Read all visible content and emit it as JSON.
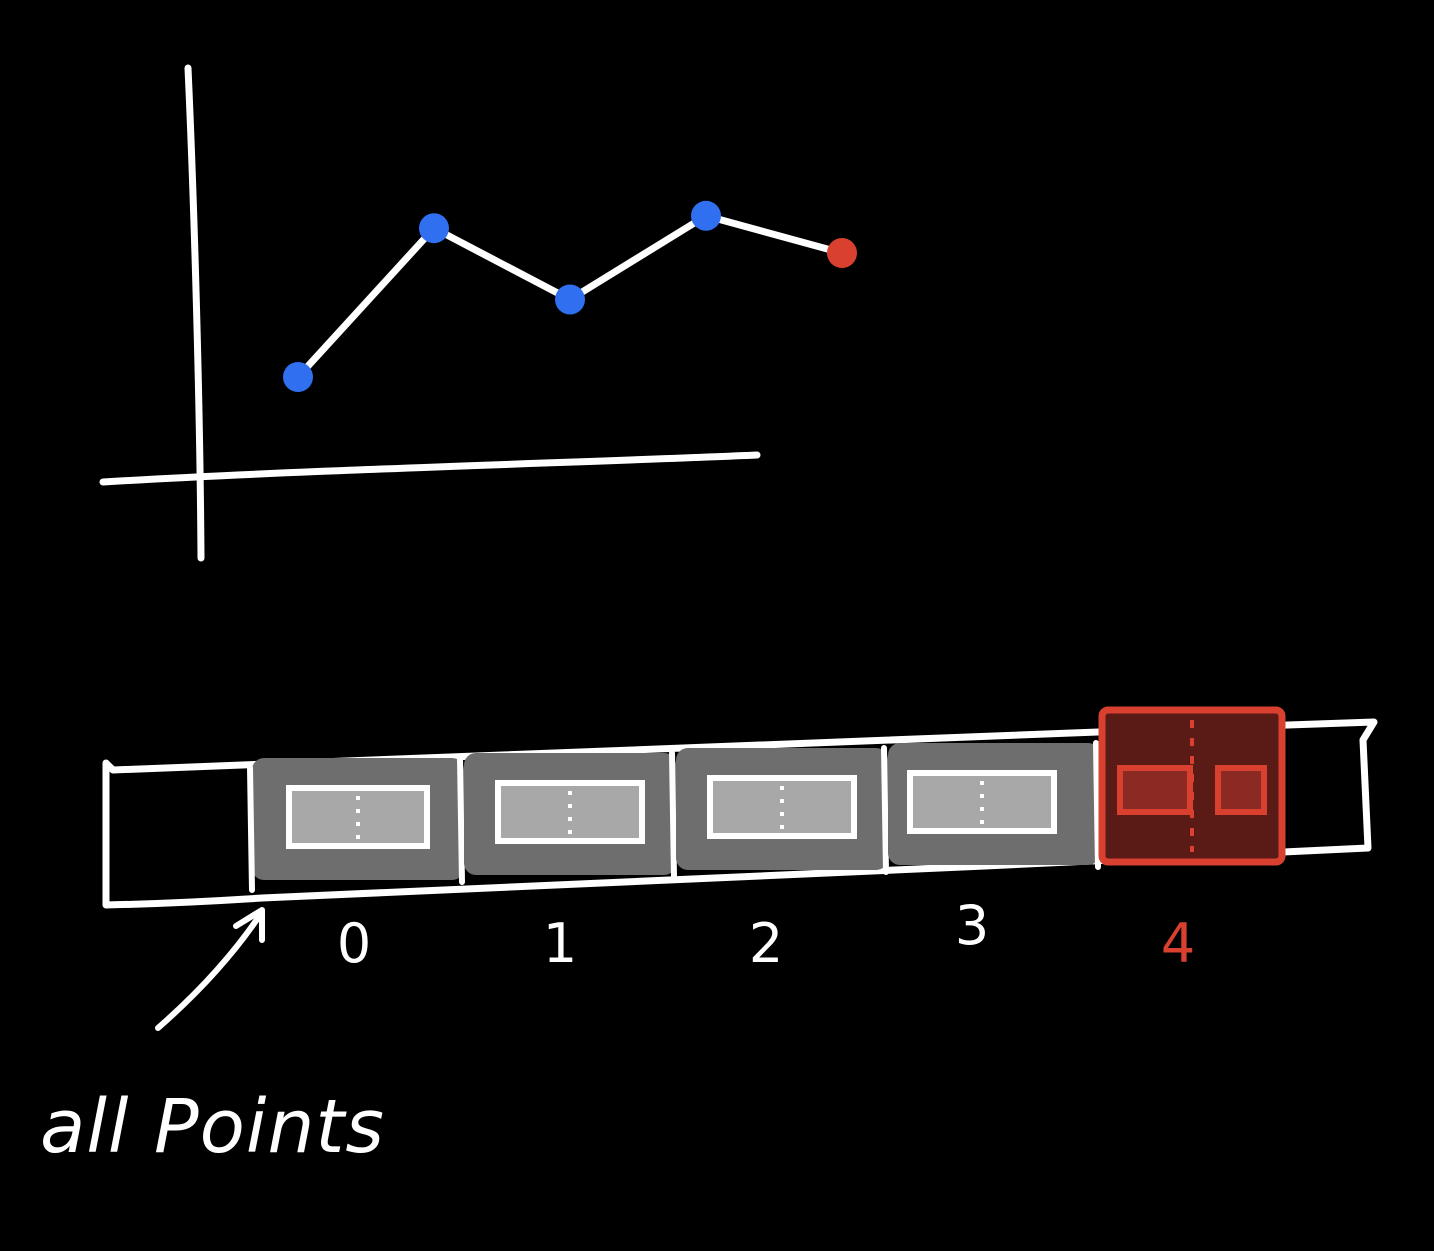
{
  "colors": {
    "background": "#000000",
    "ink": "#ffffff",
    "point": "#2f6ff0",
    "highlight": "#d94030",
    "slot_fill": "#6e6e6e",
    "inner_fill": "#a8a8a8",
    "highlight_slot_fill": "#5a1a16",
    "highlight_inner_fill": "#8a2a22"
  },
  "plot": {
    "points": [
      {
        "y": 0.3,
        "highlight": false
      },
      {
        "y": 0.78,
        "highlight": false
      },
      {
        "y": 0.55,
        "highlight": false
      },
      {
        "y": 0.82,
        "highlight": false
      },
      {
        "y": 0.7,
        "highlight": true
      }
    ]
  },
  "array": {
    "slots": [
      {
        "index_label": "0",
        "highlight": false
      },
      {
        "index_label": "1",
        "highlight": false
      },
      {
        "index_label": "2",
        "highlight": false
      },
      {
        "index_label": "3",
        "highlight": false
      },
      {
        "index_label": "4",
        "highlight": true
      }
    ],
    "pointer_label": "all Points"
  }
}
